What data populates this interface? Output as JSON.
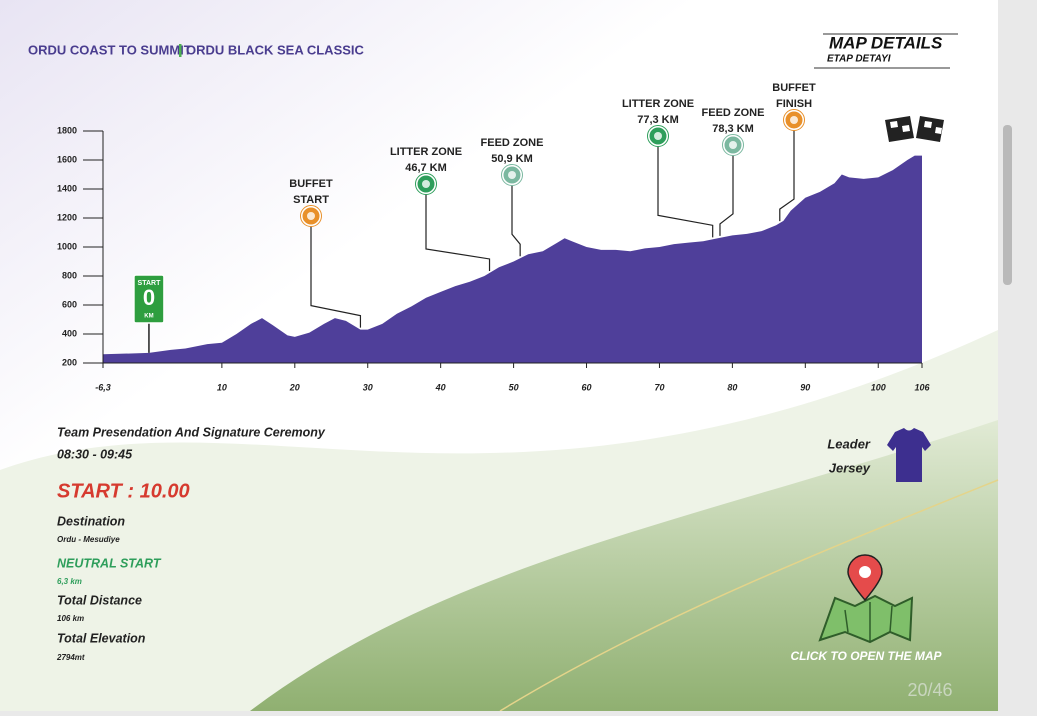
{
  "header": {
    "title_left": "ORDU COAST TO SUMMIT",
    "title_right": "ORDU BLACK SEA CLASSIC",
    "badge_title": "MAP DETAILS",
    "badge_subtitle": "ETAP DETAYI"
  },
  "chart_data": {
    "type": "area",
    "color": "#4f3f9a",
    "x": [
      -6.3,
      0,
      3,
      5,
      8,
      10,
      12,
      14,
      15.5,
      17,
      19,
      20,
      22,
      24,
      25.5,
      27,
      29,
      30,
      32,
      34,
      36,
      38,
      40,
      42,
      44,
      46,
      48,
      50,
      52,
      54,
      56,
      57,
      58,
      60,
      62,
      64,
      66,
      68,
      70,
      72,
      74,
      76,
      78,
      80,
      82,
      84,
      86,
      87,
      88,
      90,
      92,
      94,
      95,
      96,
      98,
      100,
      102,
      104,
      105,
      106
    ],
    "values": [
      260,
      270,
      290,
      300,
      330,
      340,
      400,
      470,
      510,
      460,
      390,
      380,
      410,
      470,
      510,
      490,
      430,
      430,
      470,
      540,
      590,
      650,
      690,
      730,
      760,
      800,
      860,
      900,
      950,
      970,
      1030,
      1060,
      1040,
      1000,
      980,
      980,
      970,
      990,
      1000,
      1020,
      1030,
      1040,
      1060,
      1080,
      1090,
      1110,
      1150,
      1180,
      1250,
      1340,
      1380,
      1440,
      1500,
      1480,
      1470,
      1480,
      1530,
      1600,
      1630,
      1630
    ],
    "xlim": [
      -6.3,
      106
    ],
    "ylim": [
      200,
      1800
    ],
    "xticks": [
      {
        "value": -6.3,
        "label": "-6,3"
      },
      10,
      20,
      30,
      40,
      50,
      60,
      70,
      80,
      90,
      100,
      106
    ],
    "yticks": [
      200,
      400,
      600,
      800,
      1000,
      1200,
      1400,
      1600,
      1800
    ],
    "annotations": [
      {
        "lines": [
          "BUFFET",
          "START"
        ],
        "x": 29,
        "color": "#e8902a"
      },
      {
        "lines": [
          "LITTER ZONE",
          "46,7 KM"
        ],
        "x": 46.7,
        "color": "#2e9e5b"
      },
      {
        "lines": [
          "FEED ZONE",
          "50,9 KM"
        ],
        "x": 50.9,
        "color": "#7bb8a0"
      },
      {
        "lines": [
          "LITTER ZONE",
          "77,3 KM"
        ],
        "x": 77.3,
        "color": "#2e9e5b"
      },
      {
        "lines": [
          "FEED ZONE",
          "78,3 KM"
        ],
        "x": 78.3,
        "color": "#7bb8a0"
      },
      {
        "lines": [
          "BUFFET",
          "FINISH"
        ],
        "x": 86.5,
        "color": "#e8902a"
      }
    ],
    "start_sign": {
      "top": "START",
      "value": "0",
      "unit": "KM",
      "x": 0
    }
  },
  "info": {
    "ceremony": "Team Presendation And Signature Ceremony",
    "ceremony_time": "08:30 - 09:45",
    "start": "START : 10.00",
    "destination_label": "Destination",
    "destination": "Ordu - Mesudiye",
    "neutral_label": "NEUTRAL START",
    "neutral": "6,3 km",
    "distance_label": "Total Distance",
    "distance": "106 km",
    "elevation_label": "Total Elevation",
    "elevation": "2794mt",
    "jersey_1": "Leader",
    "jersey_2": "Jersey",
    "map_link": "CLICK TO OPEN THE MAP",
    "page": "20/46"
  }
}
